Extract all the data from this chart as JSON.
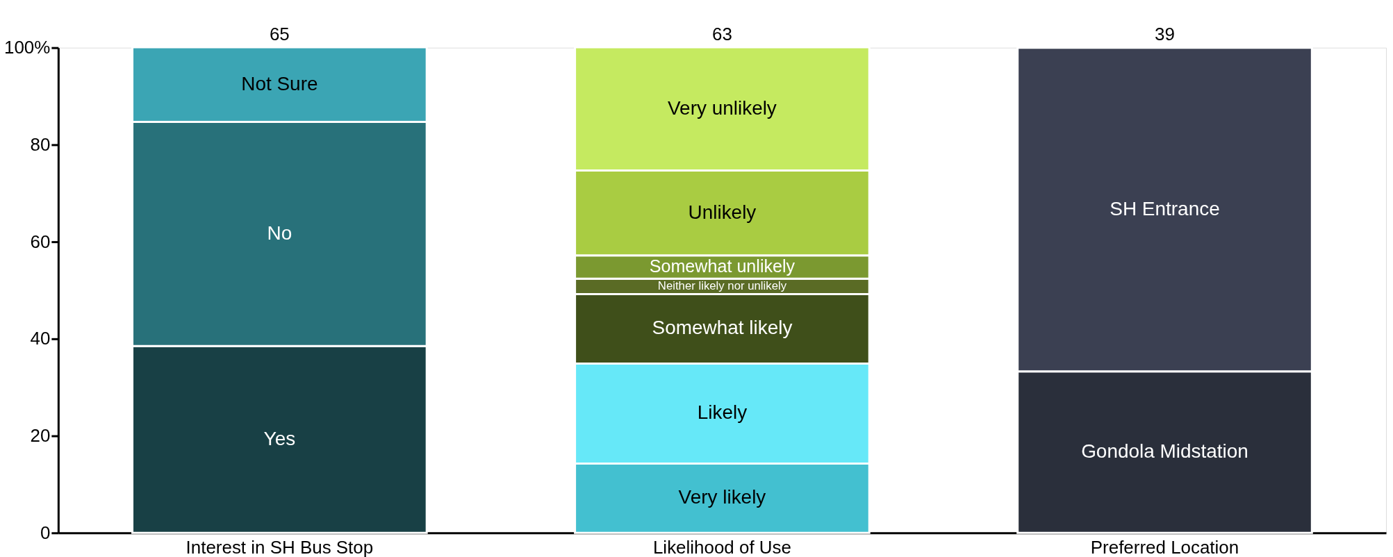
{
  "chart_data": {
    "type": "bar",
    "stacked": true,
    "categories": [
      "Interest in SH Bus Stop",
      "Likelihood of Use",
      "Preferred Location"
    ],
    "series": [
      {
        "name": "Yes",
        "color": "#184045",
        "values": [
          38.5,
          null,
          null
        ]
      },
      {
        "name": "No",
        "color": "#28717a",
        "values": [
          46.2,
          null,
          null
        ]
      },
      {
        "name": "Not Sure",
        "color": "#3ba5b4",
        "values": [
          15.4,
          null,
          null
        ]
      },
      {
        "name": "Very likely",
        "color": "#43c0d0",
        "values": [
          null,
          14.3,
          null
        ]
      },
      {
        "name": "Likely",
        "color": "#66e8f8",
        "values": [
          null,
          20.6,
          null
        ]
      },
      {
        "name": "Somewhat likely",
        "color": "#3f4f1a",
        "values": [
          null,
          14.3,
          null
        ]
      },
      {
        "name": "Neither likely nor unlikely",
        "color": "#5a6b25",
        "values": [
          null,
          3.2,
          null
        ]
      },
      {
        "name": "Somewhat unlikely",
        "color": "#7b9930",
        "values": [
          null,
          4.8,
          null
        ]
      },
      {
        "name": "Unlikely",
        "color": "#a9cc42",
        "values": [
          null,
          17.5,
          null
        ]
      },
      {
        "name": "Very unlikely",
        "color": "#c5ea60",
        "values": [
          null,
          25.4,
          null
        ]
      },
      {
        "name": "Gondola Midstation",
        "color": "#2a2f3b",
        "values": [
          null,
          null,
          33.3
        ]
      },
      {
        "name": "SH Entrance",
        "color": "#3b4052",
        "values": [
          null,
          null,
          66.7
        ]
      }
    ],
    "ylim": [
      0,
      100
    ],
    "yticks": [
      0,
      20,
      40,
      60,
      80,
      {
        "value": 100,
        "label": "100%"
      }
    ],
    "annotations": [
      {
        "text": "65",
        "x": "Interest in SH Bus Stop",
        "y": 100
      },
      {
        "text": "63",
        "x": "Likelihood of Use",
        "y": 100
      },
      {
        "text": "39",
        "x": "Preferred Location",
        "y": 100
      }
    ],
    "grid": false,
    "legend": false
  }
}
